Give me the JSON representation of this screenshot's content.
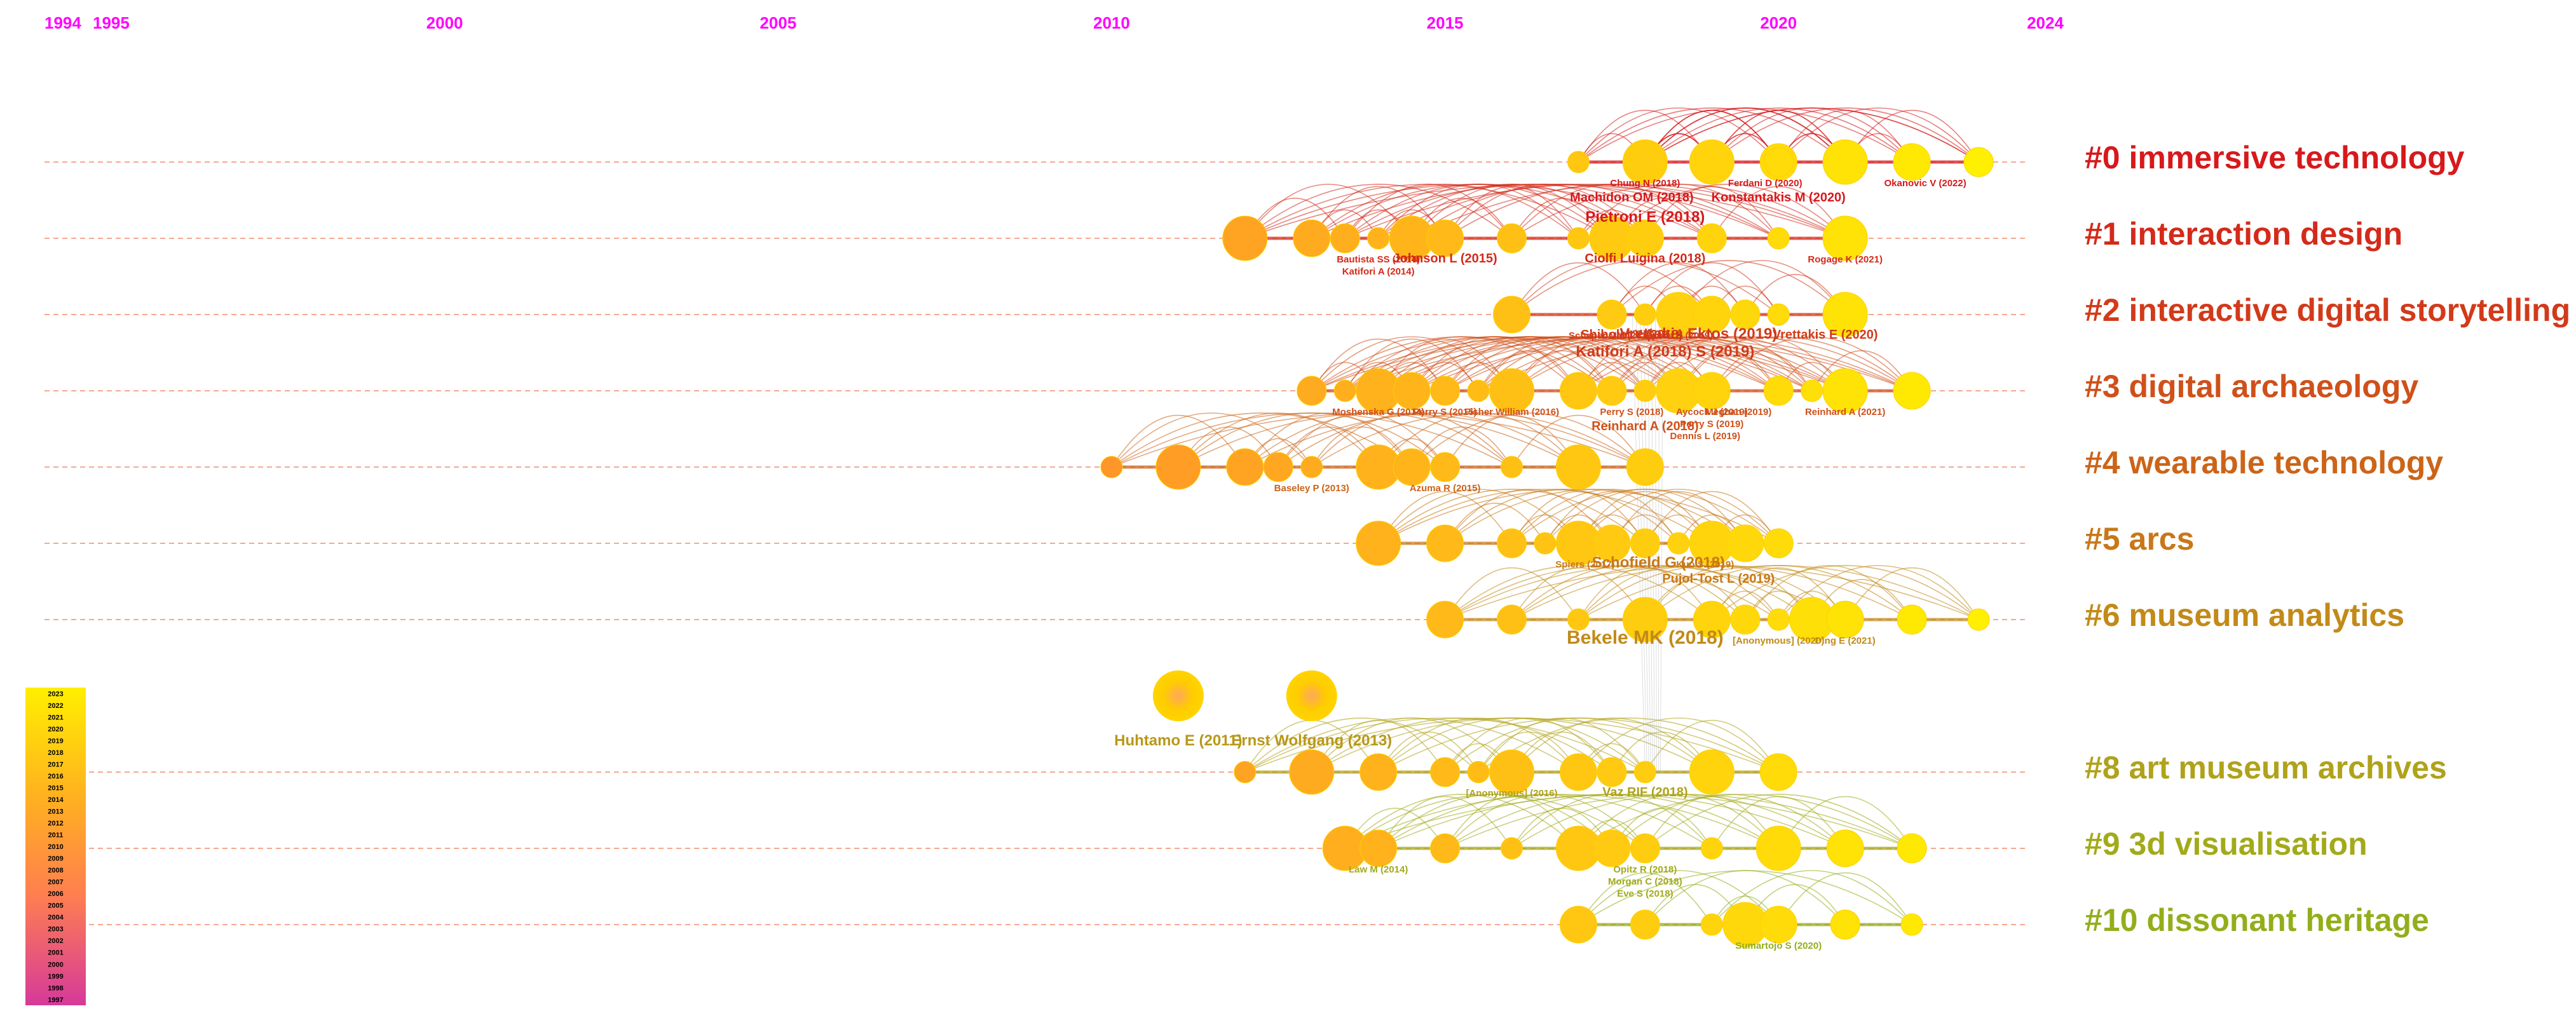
{
  "chart_data": {
    "type": "timeline",
    "title": "",
    "x_range": [
      1994,
      2024
    ],
    "year_ticks": [
      1994,
      1995,
      2000,
      2005,
      2010,
      2015,
      2020,
      2024
    ],
    "clusters": [
      {
        "id": "0",
        "label": "#0 immersive technology",
        "color": "#d7191c",
        "nodes": [
          2017,
          2018,
          2018,
          2018,
          2019,
          2019,
          2020,
          2020,
          2021,
          2021,
          2022,
          2023
        ],
        "labels": [
          {
            "text": "Chung N (2018)",
            "year": 2018,
            "size": "s"
          },
          {
            "text": "Ferdani D (2020)",
            "year": 2019.8,
            "size": "s"
          },
          {
            "text": "Okanovic V (2022)",
            "year": 2022.2,
            "size": "s"
          },
          {
            "text": "Machidon OM (2018)",
            "year": 2017.8,
            "size": "m"
          },
          {
            "text": "Konstantakis M (2020)",
            "year": 2020,
            "size": "m"
          },
          {
            "text": "Pietroni E (2018)",
            "year": 2018,
            "size": "l"
          }
        ]
      },
      {
        "id": "1",
        "label": "#1 interaction design",
        "color": "#d42a1a",
        "nodes": [
          2012,
          2013,
          2013.5,
          2014,
          2014.5,
          2015,
          2016,
          2017,
          2017.5,
          2018,
          2019,
          2020,
          2021
        ],
        "labels": [
          {
            "text": "Bautista SS (2014)",
            "year": 2014,
            "size": "s"
          },
          {
            "text": "Katifori A (2014)",
            "year": 2014,
            "size": "s"
          },
          {
            "text": "Johnson L (2015)",
            "year": 2015,
            "size": "m"
          },
          {
            "text": "Ciolfi Luigina (2018)",
            "year": 2018,
            "size": "m"
          },
          {
            "text": "Rogage K (2021)",
            "year": 2021,
            "size": "s"
          }
        ]
      },
      {
        "id": "2",
        "label": "#2 interactive digital storytelling",
        "color": "#d23a1a",
        "nodes": [
          2016,
          2017.5,
          2018,
          2018.5,
          2019,
          2019.5,
          2020,
          2021
        ],
        "labels": [
          {
            "text": "Schaper MM (2018)",
            "year": 2017.5,
            "size": "s"
          },
          {
            "text": "Rouse R (2019)",
            "year": 2018.5,
            "size": "s"
          },
          {
            "text": "Shibolet Y (2018)",
            "year": 2017.8,
            "size": "m"
          },
          {
            "text": "Vrettakis E (2020)",
            "year": 2020.7,
            "size": "m"
          },
          {
            "text": "Vrettakis Ektos (2019)",
            "year": 2018.8,
            "size": "l"
          },
          {
            "text": "Katifori A (2018) S (2019)",
            "year": 2018.3,
            "size": "l"
          }
        ]
      },
      {
        "id": "3",
        "label": "#3 digital archaeology",
        "color": "#d0501a",
        "nodes": [
          2013,
          2013.5,
          2014,
          2014.5,
          2015,
          2015.5,
          2016,
          2017,
          2017.5,
          2018,
          2018.5,
          2019,
          2020,
          2020.5,
          2021,
          2022
        ],
        "labels": [
          {
            "text": "Moshenska G (2014)",
            "year": 2014,
            "size": "s"
          },
          {
            "text": "Perry S (2015)",
            "year": 2015,
            "size": "s"
          },
          {
            "text": "Fisher William (2016)",
            "year": 2016,
            "size": "s"
          },
          {
            "text": "Perry S (2018)",
            "year": 2017.8,
            "size": "s"
          },
          {
            "text": "Aycock J (2019)",
            "year": 2019,
            "size": "s"
          },
          {
            "text": "Perry S (2019)",
            "year": 2019,
            "size": "s"
          },
          {
            "text": "Dennis L (2019)",
            "year": 2018.9,
            "size": "s"
          },
          {
            "text": "Meghan (2019)",
            "year": 2019.4,
            "size": "s"
          },
          {
            "text": "Reinhard A (2018)",
            "year": 2018,
            "size": "m"
          },
          {
            "text": "Reinhard A (2021)",
            "year": 2021,
            "size": "s"
          }
        ]
      },
      {
        "id": "4",
        "label": "#4 wearable technology",
        "color": "#cc6418",
        "nodes": [
          2010,
          2011,
          2012,
          2012.5,
          2013,
          2014,
          2014.5,
          2015,
          2016,
          2017,
          2018
        ],
        "labels": [
          {
            "text": "Baseley P (2013)",
            "year": 2013,
            "size": "s"
          },
          {
            "text": "Azuma R (2015)",
            "year": 2015,
            "size": "s"
          }
        ]
      },
      {
        "id": "5",
        "label": "#5 arcs",
        "color": "#c87818",
        "nodes": [
          2014,
          2015,
          2016,
          2016.5,
          2017,
          2017.5,
          2018,
          2018.5,
          2019,
          2019.5,
          2020
        ],
        "labels": [
          {
            "text": "Spiers (2017)",
            "year": 2017.1,
            "size": "s"
          },
          {
            "text": "Kuo S (2019)",
            "year": 2018.9,
            "size": "s"
          },
          {
            "text": "Schofield G (2018)",
            "year": 2018.2,
            "size": "l"
          },
          {
            "text": "Pujol-Tost L (2019)",
            "year": 2019.1,
            "size": "m"
          }
        ]
      },
      {
        "id": "6",
        "label": "#6 museum analytics",
        "color": "#c28a18",
        "nodes": [
          2015,
          2016,
          2017,
          2018,
          2019,
          2019.5,
          2020,
          2020.5,
          2021,
          2022,
          2023
        ],
        "labels": [
          {
            "text": "Bekele MK (2018)",
            "year": 2018,
            "size": "xl"
          },
          {
            "text": "[Anonymous] (2020)",
            "year": 2020,
            "size": "s"
          },
          {
            "text": "Ding E (2021)",
            "year": 2021,
            "size": "s"
          }
        ]
      },
      {
        "id": "7",
        "label": "",
        "color": "#b89818",
        "nodes": [],
        "labels": [
          {
            "text": "Huhtamo E (2011)",
            "year": 2011,
            "size": "l"
          },
          {
            "text": "Ernst Wolfgang (2013)",
            "year": 2013,
            "size": "l"
          }
        ]
      },
      {
        "id": "8",
        "label": "#8 art museum archives",
        "color": "#b0a21a",
        "nodes": [
          2012,
          2013,
          2014,
          2015,
          2015.5,
          2016,
          2017,
          2017.5,
          2018,
          2019,
          2020
        ],
        "labels": [
          {
            "text": "[Anonymous] (2016)",
            "year": 2016,
            "size": "s"
          },
          {
            "text": "Vaz RIF (2018)",
            "year": 2018,
            "size": "m"
          }
        ]
      },
      {
        "id": "9",
        "label": "#9 3d visualisation",
        "color": "#a2aa1a",
        "nodes": [
          2013.5,
          2014,
          2015,
          2016,
          2017,
          2017.5,
          2018,
          2019,
          2020,
          2021,
          2022
        ],
        "labels": [
          {
            "text": "Law M (2014)",
            "year": 2014,
            "size": "s"
          },
          {
            "text": "Opitz R (2018)",
            "year": 2018,
            "size": "s"
          },
          {
            "text": "Morgan C (2018)",
            "year": 2018,
            "size": "s"
          },
          {
            "text": "Eve S (2018)",
            "year": 2018,
            "size": "s"
          }
        ]
      },
      {
        "id": "10",
        "label": "#10 dissonant heritage",
        "color": "#92ae1a",
        "nodes": [
          2017,
          2018,
          2019,
          2019.5,
          2020,
          2021,
          2022
        ],
        "labels": [
          {
            "text": "Sumartojo S (2020)",
            "year": 2020,
            "size": "s"
          }
        ]
      }
    ],
    "legend": {
      "years": [
        "2023",
        "2022",
        "2021",
        "2020",
        "2019",
        "2018",
        "2017",
        "2016",
        "2015",
        "2014",
        "2013",
        "2012",
        "2011",
        "2010",
        "2009",
        "2008",
        "2007",
        "2006",
        "2005",
        "2004",
        "2003",
        "2002",
        "2001",
        "2000",
        "1999",
        "1998",
        "1997"
      ],
      "colors": {
        "newest": "#ffef00",
        "mid": "#ff9a3c",
        "oldest": "#d6399a"
      }
    },
    "colors": {
      "year_axis": "#ff00ff",
      "timeline_dash": "#f5a890"
    }
  }
}
